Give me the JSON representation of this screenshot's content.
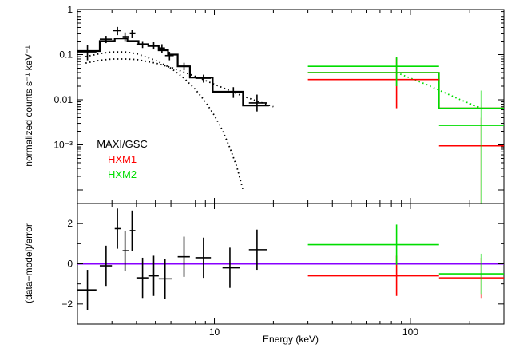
{
  "chart_data": [
    {
      "type": "line",
      "panel": "spectrum",
      "xscale": "log",
      "yscale": "log",
      "xlim": [
        2,
        300
      ],
      "ylim": [
        5e-05,
        1
      ],
      "xlabel": "Energy (keV)",
      "ylabel": "normalized counts s⁻¹ keV⁻¹",
      "yticks": [
        {
          "value": 1,
          "label": "1"
        },
        {
          "value": 0.1,
          "label": "0.1"
        },
        {
          "value": 0.01,
          "label": "0.01"
        },
        {
          "value": 0.001,
          "label": "10⁻³"
        }
      ],
      "legend_placement": "left",
      "legend": [
        {
          "label": "MAXI/GSC",
          "color": "#000000"
        },
        {
          "label": "HXM1",
          "color": "#ff0000"
        },
        {
          "label": "HXM2",
          "color": "#00dd00"
        }
      ],
      "series": [
        {
          "name": "MAXI/GSC",
          "kind": "data_crosses",
          "color": "#000000",
          "points": [
            {
              "x": 2.25,
              "xlo": 2.0,
              "xhi": 2.5,
              "y": 0.115,
              "ylo": 0.075,
              "yhi": 0.16
            },
            {
              "x": 2.8,
              "xlo": 2.6,
              "xhi": 3.0,
              "y": 0.22,
              "ylo": 0.18,
              "yhi": 0.26
            },
            {
              "x": 3.2,
              "xlo": 3.05,
              "xhi": 3.35,
              "y": 0.34,
              "ylo": 0.27,
              "yhi": 0.41
            },
            {
              "x": 3.5,
              "xlo": 3.4,
              "xhi": 3.65,
              "y": 0.25,
              "ylo": 0.2,
              "yhi": 0.31
            },
            {
              "x": 3.8,
              "xlo": 3.7,
              "xhi": 3.95,
              "y": 0.3,
              "ylo": 0.24,
              "yhi": 0.36
            },
            {
              "x": 4.3,
              "xlo": 4.0,
              "xhi": 4.6,
              "y": 0.17,
              "ylo": 0.14,
              "yhi": 0.2
            },
            {
              "x": 4.9,
              "xlo": 4.6,
              "xhi": 5.2,
              "y": 0.16,
              "ylo": 0.13,
              "yhi": 0.19
            },
            {
              "x": 5.4,
              "xlo": 5.2,
              "xhi": 5.6,
              "y": 0.14,
              "ylo": 0.11,
              "yhi": 0.17
            },
            {
              "x": 5.9,
              "xlo": 5.6,
              "xhi": 6.2,
              "y": 0.095,
              "ylo": 0.075,
              "yhi": 0.115
            },
            {
              "x": 7.0,
              "xlo": 6.5,
              "xhi": 7.5,
              "y": 0.055,
              "ylo": 0.045,
              "yhi": 0.066
            },
            {
              "x": 8.8,
              "xlo": 8.0,
              "xhi": 9.6,
              "y": 0.03,
              "ylo": 0.024,
              "yhi": 0.036
            },
            {
              "x": 12.5,
              "xlo": 11.0,
              "xhi": 13.5,
              "y": 0.015,
              "ylo": 0.011,
              "yhi": 0.019
            },
            {
              "x": 16.5,
              "xlo": 15.0,
              "xhi": 18.5,
              "y": 0.0085,
              "ylo": 0.0055,
              "yhi": 0.013
            }
          ]
        },
        {
          "name": "MAXI/GSC",
          "kind": "model_step",
          "color": "#000000",
          "steps": [
            {
              "xlo": 2.0,
              "xhi": 2.6,
              "y": 0.12
            },
            {
              "xlo": 2.6,
              "xhi": 3.1,
              "y": 0.2
            },
            {
              "xlo": 3.1,
              "xhi": 3.6,
              "y": 0.23
            },
            {
              "xlo": 3.6,
              "xhi": 4.1,
              "y": 0.2
            },
            {
              "xlo": 4.1,
              "xhi": 4.6,
              "y": 0.17
            },
            {
              "xlo": 4.6,
              "xhi": 5.2,
              "y": 0.155
            },
            {
              "xlo": 5.2,
              "xhi": 5.8,
              "y": 0.125
            },
            {
              "xlo": 5.8,
              "xhi": 6.5,
              "y": 0.1
            },
            {
              "xlo": 6.5,
              "xhi": 7.5,
              "y": 0.055
            },
            {
              "xlo": 7.5,
              "xhi": 9.8,
              "y": 0.031
            },
            {
              "xlo": 9.8,
              "xhi": 14.0,
              "y": 0.015
            },
            {
              "xlo": 14.0,
              "xhi": 19.0,
              "y": 0.0075
            }
          ]
        },
        {
          "name": "HXM1",
          "kind": "data_crosses",
          "color": "#ff0000",
          "points": [
            {
              "x": 85,
              "xlo": 30,
              "xhi": 140,
              "y": 0.028,
              "ylo": 0.0065,
              "yhi": 0.085
            },
            {
              "x": 230,
              "xlo": 140,
              "xhi": 300,
              "y": 0.00095,
              "ylo": 5e-05,
              "yhi": 0.004
            }
          ]
        },
        {
          "name": "HXM2",
          "kind": "data_crosses",
          "color": "#00dd00",
          "points": [
            {
              "x": 85,
              "xlo": 30,
              "xhi": 140,
              "y": 0.055,
              "ylo": 0.02,
              "yhi": 0.09
            },
            {
              "x": 230,
              "xlo": 140,
              "xhi": 300,
              "y": 0.0027,
              "ylo": 5e-05,
              "yhi": 0.016
            }
          ]
        },
        {
          "name": "HXM1",
          "kind": "model_step",
          "color": "#ff0000",
          "steps": [
            {
              "xlo": 30,
              "xhi": 140,
              "y": 0.04
            },
            {
              "xlo": 140,
              "xhi": 300,
              "y": 0.0065
            }
          ]
        },
        {
          "name": "HXM2",
          "kind": "model_step",
          "color": "#00dd00",
          "steps": [
            {
              "xlo": 30,
              "xhi": 140,
              "y": 0.04
            },
            {
              "xlo": 140,
              "xhi": 300,
              "y": 0.0065
            }
          ]
        },
        {
          "kind": "model_component_dotted",
          "color": "#000000",
          "points": [
            [
              2.2,
              0.09
            ],
            [
              2.6,
              0.105
            ],
            [
              3.0,
              0.115
            ],
            [
              3.5,
              0.115
            ],
            [
              4.0,
              0.105
            ],
            [
              5.0,
              0.075
            ],
            [
              6.0,
              0.05
            ],
            [
              7.0,
              0.03
            ],
            [
              8.0,
              0.017
            ],
            [
              9.0,
              0.009
            ],
            [
              10.0,
              0.0045
            ],
            [
              11.0,
              0.0021
            ],
            [
              12.0,
              0.00085
            ],
            [
              13.0,
              0.00033
            ],
            [
              14.0,
              0.0001
            ]
          ]
        },
        {
          "kind": "model_component_dotted",
          "color": "#000000",
          "points": [
            [
              2.2,
              0.065
            ],
            [
              2.6,
              0.075
            ],
            [
              3.0,
              0.08
            ],
            [
              3.5,
              0.08
            ],
            [
              4.0,
              0.078
            ],
            [
              5.0,
              0.065
            ],
            [
              6.0,
              0.052
            ],
            [
              8.0,
              0.033
            ],
            [
              10.0,
              0.022
            ],
            [
              14.0,
              0.012
            ],
            [
              20.0,
              0.007
            ]
          ]
        },
        {
          "kind": "model_component_dotted",
          "color": "#00dd00",
          "points": [
            [
              85,
              0.04
            ],
            [
              120,
              0.022
            ],
            [
              180,
              0.01
            ],
            [
              230,
              0.0065
            ]
          ]
        }
      ]
    },
    {
      "type": "scatter",
      "panel": "residuals",
      "xscale": "log",
      "xlim": [
        2,
        300
      ],
      "ylim": [
        -3,
        3
      ],
      "xlabel": "Energy (keV)",
      "ylabel": "(data−model)/error",
      "xticks": [
        {
          "value": 10,
          "label": "10"
        },
        {
          "value": 100,
          "label": "100"
        }
      ],
      "yticks": [
        {
          "value": 2,
          "label": "2"
        },
        {
          "value": 0,
          "label": "0"
        },
        {
          "value": -2,
          "label": "−2"
        }
      ],
      "zero_line_color": "#8800ff",
      "series": [
        {
          "name": "MAXI/GSC",
          "color": "#000000",
          "points": [
            {
              "x": 2.25,
              "xlo": 2.0,
              "xhi": 2.5,
              "y": -1.3,
              "ylo": -2.3,
              "yhi": -0.3
            },
            {
              "x": 2.8,
              "xlo": 2.6,
              "xhi": 3.0,
              "y": -0.1,
              "ylo": -1.1,
              "yhi": 0.9
            },
            {
              "x": 3.2,
              "xlo": 3.1,
              "xhi": 3.35,
              "y": 1.75,
              "ylo": 0.75,
              "yhi": 2.75
            },
            {
              "x": 3.5,
              "xlo": 3.4,
              "xhi": 3.65,
              "y": 0.65,
              "ylo": -0.35,
              "yhi": 1.65
            },
            {
              "x": 3.8,
              "xlo": 3.7,
              "xhi": 3.95,
              "y": 1.65,
              "ylo": 0.65,
              "yhi": 2.65
            },
            {
              "x": 4.3,
              "xlo": 4.0,
              "xhi": 4.6,
              "y": -0.7,
              "ylo": -1.7,
              "yhi": 0.3
            },
            {
              "x": 4.9,
              "xlo": 4.6,
              "xhi": 5.2,
              "y": -0.6,
              "ylo": -1.6,
              "yhi": 0.4
            },
            {
              "x": 5.6,
              "xlo": 5.2,
              "xhi": 6.1,
              "y": -0.75,
              "ylo": -1.75,
              "yhi": 0.25
            },
            {
              "x": 7.0,
              "xlo": 6.5,
              "xhi": 7.5,
              "y": 0.35,
              "ylo": -0.65,
              "yhi": 1.35
            },
            {
              "x": 8.8,
              "xlo": 8.0,
              "xhi": 9.6,
              "y": 0.3,
              "ylo": -0.7,
              "yhi": 1.3
            },
            {
              "x": 12.0,
              "xlo": 11.0,
              "xhi": 13.5,
              "y": -0.2,
              "ylo": -1.2,
              "yhi": 0.8
            },
            {
              "x": 16.5,
              "xlo": 15.0,
              "xhi": 18.5,
              "y": 0.7,
              "ylo": -0.3,
              "yhi": 1.7
            }
          ]
        },
        {
          "name": "HXM1",
          "color": "#ff0000",
          "points": [
            {
              "x": 85,
              "xlo": 30,
              "xhi": 140,
              "y": -0.6,
              "ylo": -1.6,
              "yhi": 0.4
            },
            {
              "x": 230,
              "xlo": 140,
              "xhi": 300,
              "y": -0.7,
              "ylo": -1.7,
              "yhi": 0.3
            }
          ]
        },
        {
          "name": "HXM2",
          "color": "#00dd00",
          "points": [
            {
              "x": 85,
              "xlo": 30,
              "xhi": 140,
              "y": 0.95,
              "ylo": -0.05,
              "yhi": 1.95
            },
            {
              "x": 230,
              "xlo": 140,
              "xhi": 300,
              "y": -0.5,
              "ylo": -1.5,
              "yhi": 0.5
            }
          ]
        }
      ]
    }
  ]
}
